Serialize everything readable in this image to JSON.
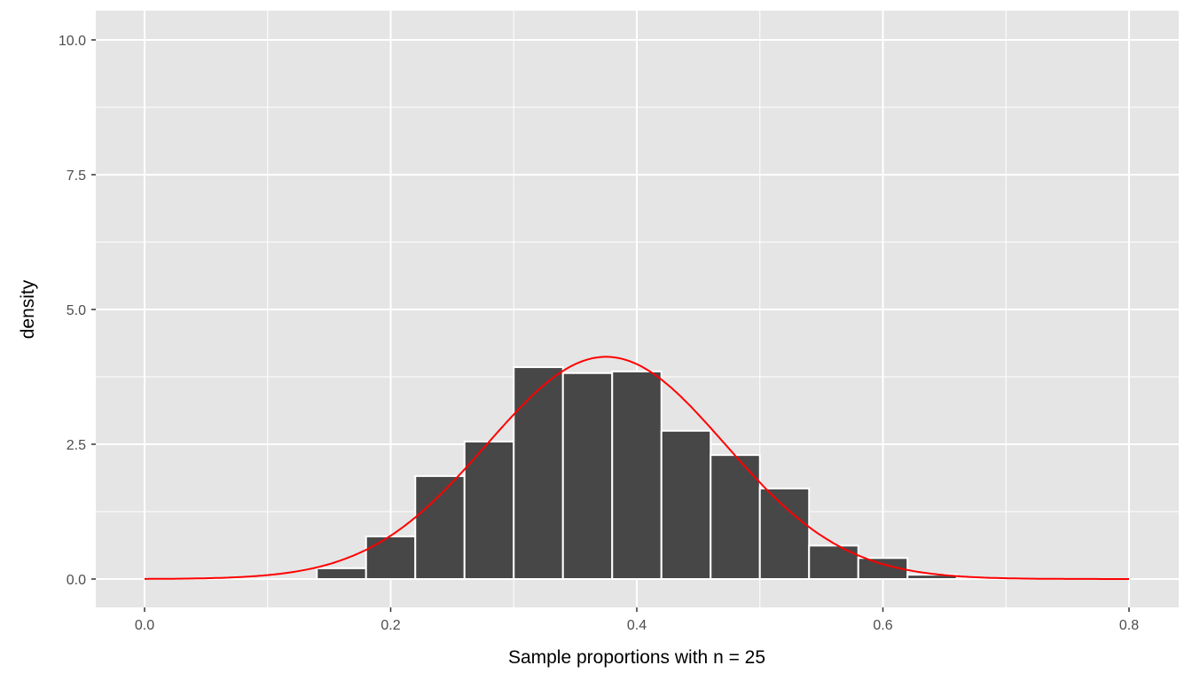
{
  "chart_data": {
    "type": "bar",
    "subtype": "histogram with normal density overlay",
    "xlabel": "Sample proportions with n = 25",
    "ylabel": "density",
    "xlim": [
      -0.04,
      0.84
    ],
    "ylim": [
      -0.5,
      10.6
    ],
    "x_ticks": [
      0.0,
      0.2,
      0.4,
      0.6,
      0.8
    ],
    "x_tick_labels": [
      "0.0",
      "0.2",
      "0.4",
      "0.6",
      "0.8"
    ],
    "y_ticks": [
      0,
      2.5,
      5,
      7.5,
      10
    ],
    "y_tick_labels": [
      "0.0",
      "2.5",
      "5.0",
      "7.5",
      "10.0"
    ],
    "grid": true,
    "bin_width": 0.04,
    "bins": [
      {
        "start": 0.14,
        "end": 0.18,
        "density": 0.2
      },
      {
        "start": 0.18,
        "end": 0.22,
        "density": 0.79
      },
      {
        "start": 0.22,
        "end": 0.26,
        "density": 1.91
      },
      {
        "start": 0.26,
        "end": 0.3,
        "density": 2.55
      },
      {
        "start": 0.3,
        "end": 0.34,
        "density": 3.93
      },
      {
        "start": 0.34,
        "end": 0.38,
        "density": 3.82
      },
      {
        "start": 0.38,
        "end": 0.42,
        "density": 3.85
      },
      {
        "start": 0.42,
        "end": 0.46,
        "density": 2.75
      },
      {
        "start": 0.46,
        "end": 0.5,
        "density": 2.3
      },
      {
        "start": 0.5,
        "end": 0.54,
        "density": 1.68
      },
      {
        "start": 0.54,
        "end": 0.58,
        "density": 0.62
      },
      {
        "start": 0.58,
        "end": 0.62,
        "density": 0.39
      },
      {
        "start": 0.62,
        "end": 0.66,
        "density": 0.08
      }
    ],
    "curve": {
      "type": "normal",
      "mean": 0.375,
      "sd": 0.0968,
      "x_range": [
        0,
        0.8
      ],
      "color": "#ff0000"
    },
    "colors": {
      "bar_fill": "#474747",
      "bar_outline": "#ffffff",
      "panel": "#e5e5e5",
      "grid": "#ffffff"
    }
  }
}
